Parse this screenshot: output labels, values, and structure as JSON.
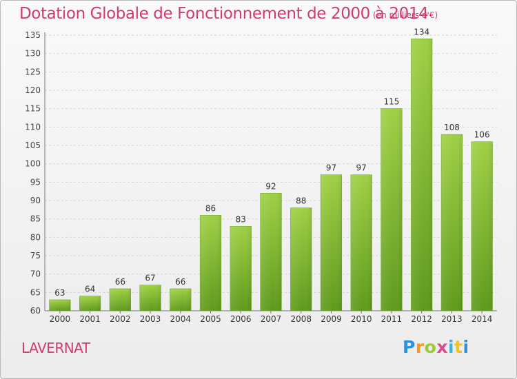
{
  "chart_data": {
    "type": "bar",
    "title": "Dotation Globale de Fonctionnement de 2000 à 2014",
    "subtitle": "(en milliers d'€)",
    "categories": [
      "2000",
      "2001",
      "2002",
      "2003",
      "2004",
      "2005",
      "2006",
      "2007",
      "2008",
      "2009",
      "2010",
      "2011",
      "2012",
      "2013",
      "2014"
    ],
    "values": [
      63,
      64,
      66,
      67,
      66,
      86,
      83,
      92,
      88,
      97,
      97,
      115,
      134,
      108,
      106
    ],
    "ylim": [
      60,
      135
    ],
    "yticks": [
      60,
      65,
      70,
      75,
      80,
      85,
      90,
      95,
      100,
      105,
      110,
      115,
      120,
      125,
      130,
      135
    ],
    "grid": true,
    "bar_color": "#7cb82f",
    "xlabel": "",
    "ylabel": ""
  },
  "footer": {
    "place": "LAVERNAT",
    "logo_letters": [
      "P",
      "r",
      "o",
      "x",
      "i",
      "t",
      "i"
    ]
  },
  "colors": {
    "title": "#d23c6a",
    "bar_top": "#9fd045",
    "bar_bottom": "#5f9a1c"
  }
}
